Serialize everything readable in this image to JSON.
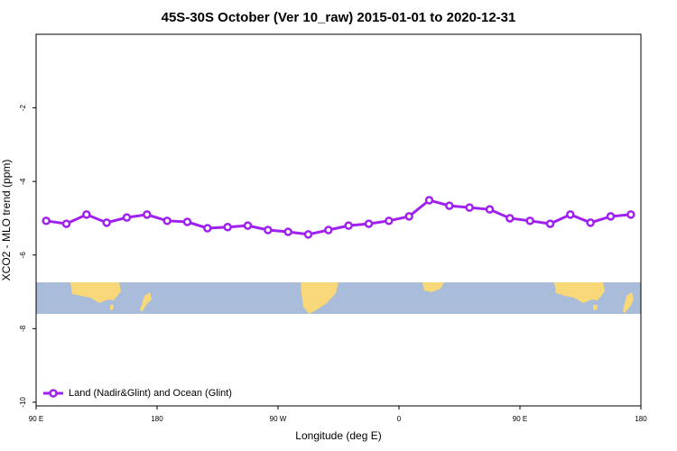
{
  "chart_data": {
    "type": "line",
    "title": "45S-30S October (Ver 10_raw)   2015-01-01 to 2020-12-31",
    "xlabel": "Longitude (deg E)",
    "ylabel": "XCO2 - MLO trend (ppm)",
    "x": [
      97.5,
      112.5,
      127.5,
      142.5,
      157.5,
      172.5,
      187.5,
      202.5,
      217.5,
      232.5,
      247.5,
      262.5,
      277.5,
      292.5,
      307.5,
      322.5,
      337.5,
      352.5,
      367.5,
      382.5,
      397.5,
      412.5,
      427.5,
      442.5,
      457.5,
      472.5,
      487.5,
      502.5,
      517.5,
      532.5
    ],
    "series": [
      {
        "name": "Land (Nadir&Glint) and Ocean (Glint)",
        "color": "#a020f0",
        "values": [
          -5.07,
          -5.15,
          -4.9,
          -5.12,
          -4.98,
          -4.9,
          -5.07,
          -5.1,
          -5.27,
          -5.24,
          -5.2,
          -5.32,
          -5.37,
          -5.44,
          -5.32,
          -5.2,
          -5.15,
          -5.07,
          -4.95,
          -4.51,
          -4.66,
          -4.71,
          -4.76,
          -5.0,
          -5.07,
          -5.15,
          -4.9,
          -5.12,
          -4.95,
          -4.9
        ]
      }
    ],
    "xlim": [
      90,
      540
    ],
    "xticks": [
      {
        "value": 90,
        "label": "90 E"
      },
      180,
      {
        "value": 270,
        "label": "90 W"
      },
      {
        "value": 360,
        "label": "0"
      },
      {
        "value": 450,
        "label": "90 E"
      },
      {
        "value": 540,
        "label": "180"
      }
    ],
    "ylim": [
      -10.1,
      0
    ],
    "yticks": [
      -2,
      -4,
      -6,
      -8,
      -10
    ],
    "legend": "lower left",
    "grid": false
  }
}
